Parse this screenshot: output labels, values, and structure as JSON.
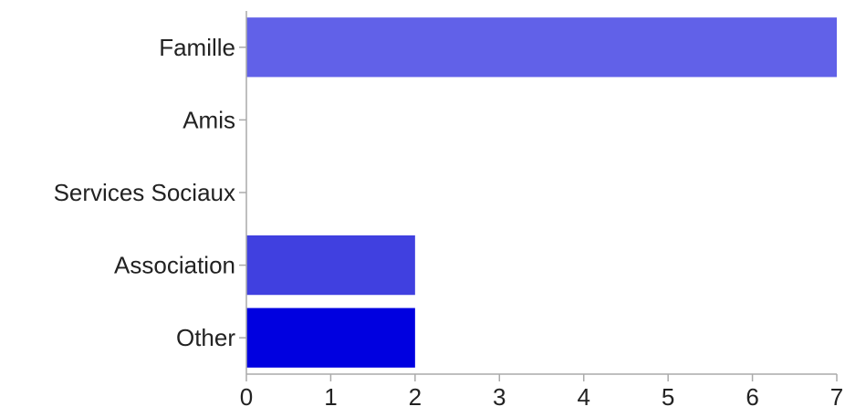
{
  "chart_data": {
    "type": "bar",
    "orientation": "horizontal",
    "title": "",
    "xlabel": "",
    "ylabel": "",
    "categories": [
      "Famille",
      "Amis",
      "Services Sociaux",
      "Association",
      "Other"
    ],
    "values": [
      7,
      0,
      0,
      2,
      2
    ],
    "colors": [
      "#6161e8",
      "#5757e6",
      "#4a4ae3",
      "#4040e0",
      "#0000e0"
    ],
    "xlim": [
      0,
      7
    ],
    "xticks": [
      "0",
      "1",
      "2",
      "3",
      "4",
      "5",
      "6",
      "7"
    ],
    "grid": false,
    "legend": "none"
  }
}
